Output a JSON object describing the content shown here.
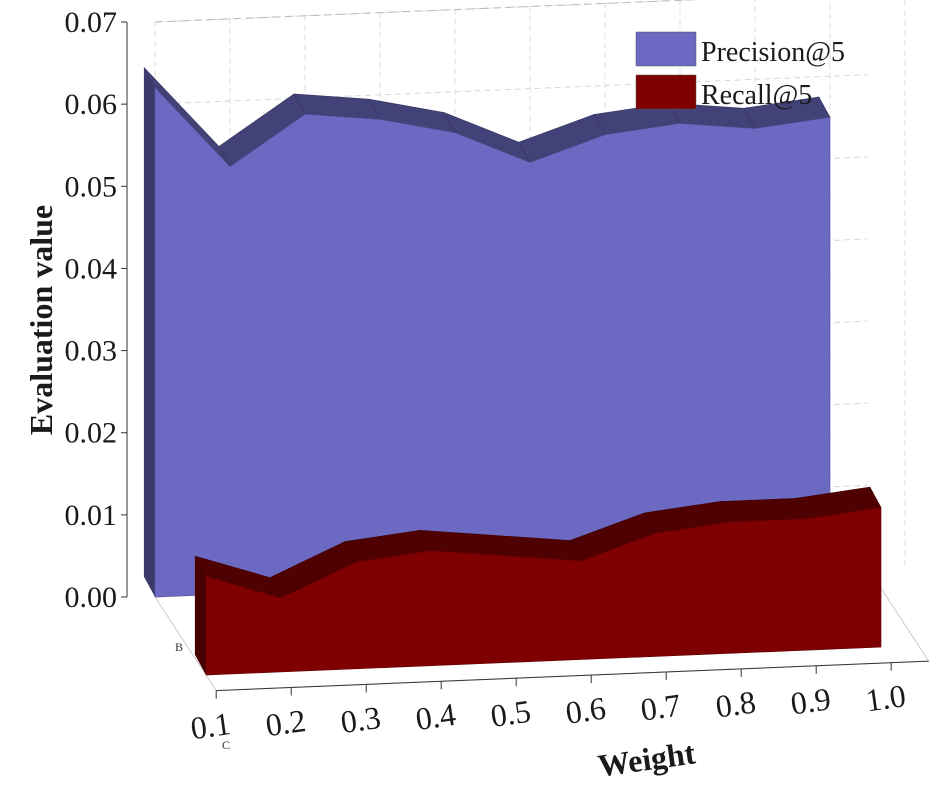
{
  "chart_data": {
    "type": "area",
    "style": "3d-wall",
    "ylabel": "Evaluation value",
    "xlabel": "Weight",
    "x": [
      0.1,
      0.2,
      0.3,
      0.4,
      0.5,
      0.6,
      0.7,
      0.8,
      0.9,
      1.0
    ],
    "x_tick_labels": [
      "0.1",
      "0.2",
      "0.3",
      "0.4",
      "0.5",
      "0.6",
      "0.7",
      "0.8",
      "0.9",
      "1.0"
    ],
    "ylim": [
      0,
      0.07
    ],
    "y_tick_labels": [
      "0.00",
      "0.01",
      "0.02",
      "0.03",
      "0.04",
      "0.05",
      "0.06",
      "0.07"
    ],
    "depth_labels": [
      "B",
      "C"
    ],
    "grid": true,
    "legend_position": "top-right",
    "series": [
      {
        "name": "Precision@5",
        "color": "#6b69c2",
        "values": [
          0.062,
          0.052,
          0.058,
          0.057,
          0.055,
          0.051,
          0.054,
          0.055,
          0.054,
          0.055
        ]
      },
      {
        "name": "Recall@5",
        "color": "#7f0000",
        "values": [
          0.012,
          0.009,
          0.013,
          0.014,
          0.013,
          0.012,
          0.015,
          0.016,
          0.016,
          0.017
        ]
      }
    ]
  }
}
